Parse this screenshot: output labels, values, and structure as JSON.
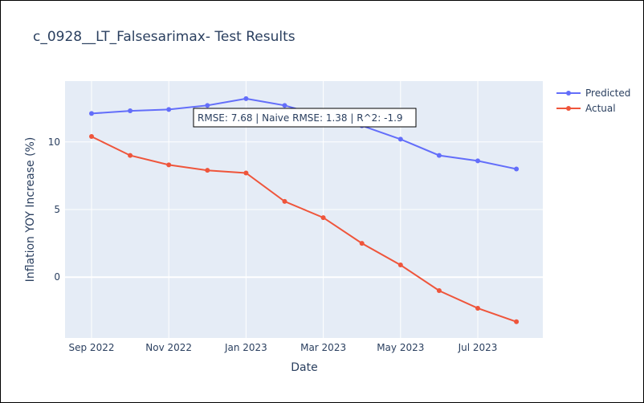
{
  "chart_data": {
    "type": "line",
    "title": "c_0928__LT_Falsesarimax- Test Results",
    "xlabel": "Date",
    "ylabel": "Inflation YOY Increase (%)",
    "x": [
      "2022-09",
      "2022-10",
      "2022-11",
      "2022-12",
      "2023-01",
      "2023-02",
      "2023-03",
      "2023-04",
      "2023-05",
      "2023-06",
      "2023-07",
      "2023-08"
    ],
    "x_ticks": [
      "2022-09",
      "2022-11",
      "2023-01",
      "2023-03",
      "2023-05",
      "2023-07"
    ],
    "x_tick_labels": [
      "Sep 2022",
      "Nov 2022",
      "Jan 2023",
      "Mar 2023",
      "May 2023",
      "Jul 2023"
    ],
    "y_ticks": [
      0,
      5,
      10
    ],
    "y_tick_labels": [
      "0",
      "5",
      "10"
    ],
    "ylim": [
      -4.5,
      14.5
    ],
    "grid": true,
    "legend_position": "top-right",
    "series": [
      {
        "name": "Predicted",
        "color": "#636efa",
        "values": [
          12.1,
          12.3,
          12.4,
          12.7,
          13.2,
          12.7,
          11.9,
          11.2,
          10.2,
          9.0,
          8.6,
          8.0
        ]
      },
      {
        "name": "Actual",
        "color": "#ef553b",
        "values": [
          10.4,
          9.0,
          8.3,
          7.9,
          7.7,
          5.6,
          4.4,
          2.5,
          0.9,
          -1.0,
          -2.3,
          -3.3
        ]
      }
    ],
    "annotation": "RMSE: 7.68 | Naive RMSE: 1.38 | R^2: -1.9"
  }
}
